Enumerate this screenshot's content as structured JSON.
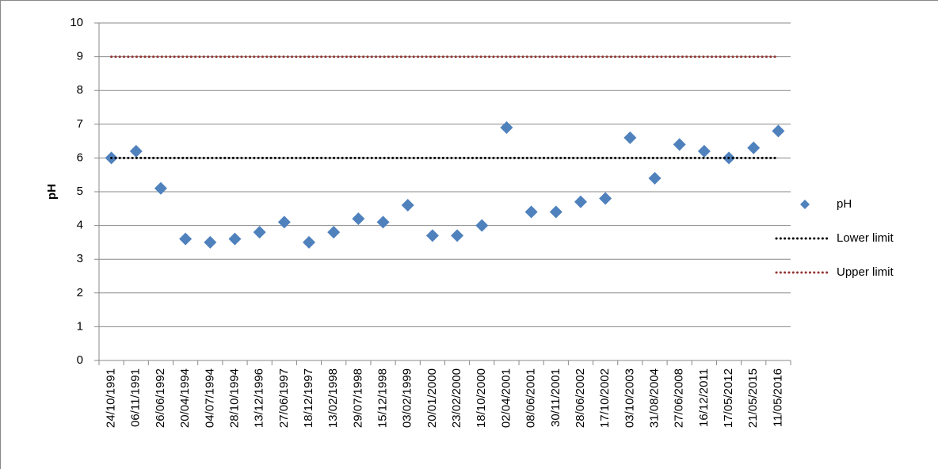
{
  "chart_data": {
    "type": "line",
    "y_label": "pH",
    "categories": [
      "24/10/1991",
      "06/11/1991",
      "26/06/1992",
      "20/04/1994",
      "04/07/1994",
      "28/10/1994",
      "13/12/1996",
      "27/06/1997",
      "18/12/1997",
      "13/02/1998",
      "29/07/1998",
      "15/12/1998",
      "03/02/1999",
      "20/01/2000",
      "23/02/2000",
      "18/10/2000",
      "02/04/2001",
      "08/06/2001",
      "30/11/2001",
      "28/06/2002",
      "17/10/2002",
      "03/10/2003",
      "31/08/2004",
      "27/06/2008",
      "16/12/2011",
      "17/05/2012",
      "21/05/2015",
      "11/05/2016"
    ],
    "series": [
      {
        "name": "pH",
        "color": "#4f81bd",
        "style": "markers",
        "values": [
          6.0,
          6.2,
          5.1,
          3.6,
          3.5,
          3.6,
          3.8,
          4.1,
          3.5,
          3.8,
          4.2,
          4.1,
          4.6,
          3.7,
          3.7,
          4.0,
          6.9,
          4.4,
          4.4,
          4.7,
          4.8,
          6.6,
          5.4,
          6.4,
          6.2,
          6.0,
          6.3,
          6.8
        ]
      },
      {
        "name": "Lower limit",
        "color": "#000000",
        "style": "dotted",
        "values": [
          6,
          6,
          6,
          6,
          6,
          6,
          6,
          6,
          6,
          6,
          6,
          6,
          6,
          6,
          6,
          6,
          6,
          6,
          6,
          6,
          6,
          6,
          6,
          6,
          6,
          6,
          6,
          6
        ]
      },
      {
        "name": "Upper limit",
        "color": "#943634",
        "style": "dotted",
        "values": [
          9,
          9,
          9,
          9,
          9,
          9,
          9,
          9,
          9,
          9,
          9,
          9,
          9,
          9,
          9,
          9,
          9,
          9,
          9,
          9,
          9,
          9,
          9,
          9,
          9,
          9,
          9,
          9
        ]
      }
    ],
    "ylim": [
      0,
      10
    ],
    "yticks": [
      0,
      1,
      2,
      3,
      4,
      5,
      6,
      7,
      8,
      9,
      10
    ],
    "grid": true,
    "legend": "right"
  }
}
